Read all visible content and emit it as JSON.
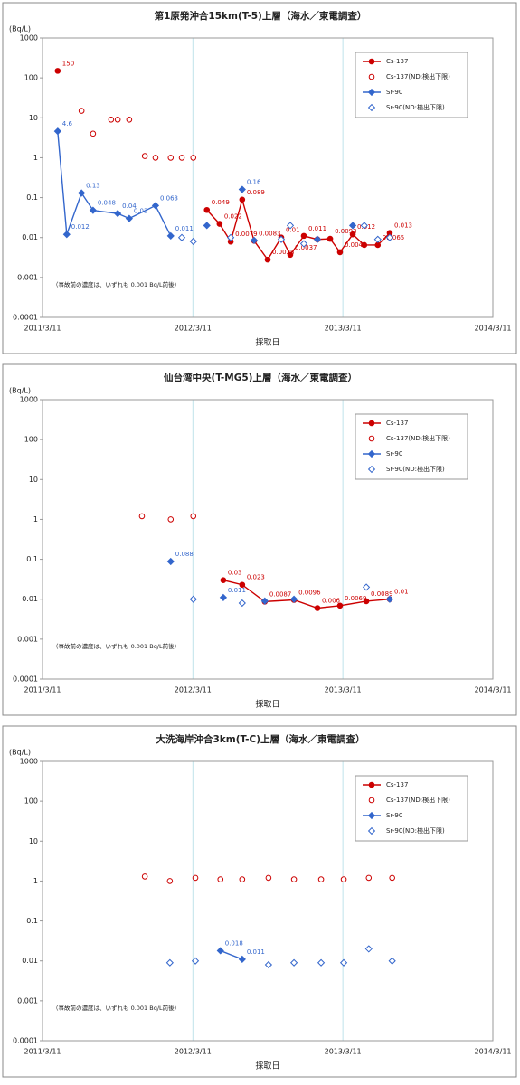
{
  "chart_data": [
    {
      "type": "scatter",
      "title": "第1原発沖合15km(T-5)上層（海水／東電調査）",
      "y_label": "(Bq/L)",
      "x_label": "採取日",
      "annotation": "（事故前の濃度は、いずれも 0.001 Bq/L前後）",
      "y_log": true,
      "ylim": [
        0.0001,
        1000
      ],
      "yticks": [
        1000,
        100,
        10,
        1,
        0.1,
        0.01,
        0.001,
        0.0001
      ],
      "xlim": [
        "2011-03-11",
        "2014-03-11"
      ],
      "xticks": [
        {
          "value": "2011-03-11",
          "label": "2011/3/11"
        },
        {
          "value": "2012-03-11",
          "label": "2012/3/11"
        },
        {
          "value": "2013-03-11",
          "label": "2013/3/11"
        },
        {
          "value": "2014-03-11",
          "label": "2014/3/11"
        }
      ],
      "grid": "x",
      "legend": "upper right",
      "series": [
        {
          "name": "Cs-137",
          "color": "#cc0000",
          "marker": "circle",
          "filled": true,
          "line": true,
          "x": [
            "2011-04-17",
            "2011-12-11",
            "2012-04-14",
            "2012-05-15",
            "2012-06-11",
            "2012-07-09",
            "2012-08-07",
            "2012-09-09",
            "2012-10-12",
            "2012-11-03",
            "2012-12-06",
            "2013-01-08",
            "2013-02-08",
            "2013-03-04",
            "2013-04-04",
            "2013-05-02",
            "2013-06-04",
            "2013-07-03"
          ],
          "values": [
            150,
            null,
            0.049,
            0.022,
            0.0079,
            0.089,
            0.0083,
            0.0028,
            0.01,
            0.0037,
            0.011,
            0.009,
            0.0093,
            0.0043,
            0.012,
            0.0065,
            0.0065,
            0.013
          ],
          "value_labels": [
            "150",
            null,
            "0.049",
            "0.022",
            "0.0079",
            "0.089",
            "0.0083",
            "0.0028",
            "0.01",
            "0.0037",
            "0.011",
            null,
            "0.0093",
            "0.0043",
            "0.012",
            null,
            "0.0065",
            "0.013"
          ]
        },
        {
          "name": "Cs-137(ND:検出下限)",
          "color": "#cc0000",
          "marker": "circle",
          "filled": false,
          "line": false,
          "x": [
            "2011-06-14",
            "2011-07-12",
            "2011-08-25",
            "2011-09-10",
            "2011-10-08",
            "2011-11-15",
            "2011-12-11",
            "2012-01-17",
            "2012-02-13",
            "2012-03-12"
          ],
          "values": [
            15,
            4,
            9,
            9,
            9,
            1.1,
            1,
            1,
            1,
            1
          ]
        },
        {
          "name": "Sr-90",
          "color": "#3366cc",
          "marker": "diamond",
          "filled": true,
          "line": true,
          "x": [
            "2011-04-17",
            "2011-05-09",
            "2011-06-14",
            "2011-07-12",
            "2011-09-10",
            "2011-10-08",
            "2011-12-11",
            "2012-01-17",
            "2012-02-13",
            "2012-04-14",
            "2012-05-01",
            "2012-07-09",
            "2012-07-20",
            "2012-08-07",
            "2012-10-01",
            "2013-01-08",
            "2013-03-01",
            "2013-04-04"
          ],
          "values": [
            4.6,
            0.012,
            0.13,
            0.048,
            0.04,
            0.03,
            0.063,
            0.011,
            null,
            0.02,
            null,
            0.16,
            null,
            0.0085,
            null,
            0.009,
            null,
            0.02
          ],
          "value_labels": [
            "4.6",
            "0.012",
            "0.13",
            "0.048",
            "0.04",
            "0.03",
            "0.063",
            "0.011",
            null,
            null,
            null,
            "0.16",
            null,
            null,
            null,
            null,
            null,
            null
          ]
        },
        {
          "name": "Sr-90(ND:検出下限)",
          "color": "#3366cc",
          "marker": "diamond",
          "filled": false,
          "line": false,
          "x": [
            "2012-02-13",
            "2012-03-12",
            "2012-06-11",
            "2012-10-12",
            "2012-11-03",
            "2012-12-06",
            "2013-05-02",
            "2013-06-04",
            "2013-07-03"
          ],
          "values": [
            0.01,
            0.008,
            0.01,
            0.009,
            0.02,
            0.007,
            0.02,
            0.009,
            0.01
          ]
        }
      ]
    },
    {
      "type": "scatter",
      "title": "仙台湾中央(T-MG5)上層（海水／東電調査）",
      "y_label": "(Bq/L)",
      "x_label": "採取日",
      "annotation": "（事故前の濃度は、いずれも 0.001 Bq/L前後）",
      "y_log": true,
      "ylim": [
        0.0001,
        1000
      ],
      "yticks": [
        1000,
        100,
        10,
        1,
        0.1,
        0.01,
        0.001,
        0.0001
      ],
      "xlim": [
        "2011-03-11",
        "2014-03-11"
      ],
      "xticks": [
        {
          "value": "2011-03-11",
          "label": "2011/3/11"
        },
        {
          "value": "2012-03-11",
          "label": "2012/3/11"
        },
        {
          "value": "2013-03-11",
          "label": "2013/3/11"
        },
        {
          "value": "2014-03-11",
          "label": "2014/3/11"
        }
      ],
      "grid": "x",
      "legend": "upper right",
      "series": [
        {
          "name": "Cs-137",
          "color": "#cc0000",
          "marker": "circle",
          "filled": true,
          "line": true,
          "x": [
            "2012-05-24",
            "2012-07-09",
            "2012-09-02",
            "2012-11-12",
            "2013-01-08",
            "2013-03-04",
            "2013-05-07",
            "2013-07-03"
          ],
          "values": [
            0.03,
            0.023,
            0.0087,
            0.0096,
            0.006,
            0.0069,
            0.0089,
            0.01
          ],
          "value_labels": [
            "0.03",
            "0.023",
            "0.0087",
            "0.0096",
            "0.006",
            "0.0069",
            "0.0089",
            "0.01"
          ]
        },
        {
          "name": "Cs-137(ND:検出下限)",
          "color": "#cc0000",
          "marker": "circle",
          "filled": false,
          "line": false,
          "x": [
            "2011-11-08",
            "2012-01-17",
            "2012-03-12"
          ],
          "values": [
            1.2,
            1,
            1.2
          ]
        },
        {
          "name": "Sr-90",
          "color": "#3366cc",
          "marker": "diamond",
          "filled": true,
          "line": true,
          "x": [
            "2012-01-17",
            "2012-03-12",
            "2012-05-24",
            "2012-07-09",
            "2012-09-02",
            "2012-10-01",
            "2012-11-12",
            "2013-06-01",
            "2013-07-03"
          ],
          "values": [
            0.088,
            null,
            0.011,
            null,
            0.009,
            null,
            0.01,
            null,
            0.01
          ],
          "value_labels": [
            "0.088",
            null,
            "0.011",
            null,
            null,
            null,
            null,
            null,
            null
          ]
        },
        {
          "name": "Sr-90(ND:検出下限)",
          "color": "#3366cc",
          "marker": "diamond",
          "filled": false,
          "line": false,
          "x": [
            "2012-03-12",
            "2012-07-09",
            "2013-05-07"
          ],
          "values": [
            0.01,
            0.008,
            0.02
          ]
        }
      ]
    },
    {
      "type": "scatter",
      "title": "大洗海岸沖合3km(T-C)上層（海水／東電調査）",
      "y_label": "(Bq/L)",
      "x_label": "採取日",
      "annotation": "（事故前の濃度は、いずれも 0.001 Bq/L前後）",
      "y_log": true,
      "ylim": [
        0.0001,
        1000
      ],
      "yticks": [
        1000,
        100,
        10,
        1,
        0.1,
        0.01,
        0.001,
        0.0001
      ],
      "xlim": [
        "2011-03-11",
        "2014-03-11"
      ],
      "xticks": [
        {
          "value": "2011-03-11",
          "label": "2011/3/11"
        },
        {
          "value": "2012-03-11",
          "label": "2012/3/11"
        },
        {
          "value": "2013-03-11",
          "label": "2013/3/11"
        },
        {
          "value": "2014-03-11",
          "label": "2014/3/11"
        }
      ],
      "grid": "x",
      "legend": "upper right",
      "series": [
        {
          "name": "Cs-137",
          "color": "#cc0000",
          "marker": "circle",
          "filled": true,
          "line": true,
          "x": [],
          "values": []
        },
        {
          "name": "Cs-137(ND:検出下限)",
          "color": "#cc0000",
          "marker": "circle",
          "filled": false,
          "line": false,
          "x": [
            "2011-11-15",
            "2012-01-15",
            "2012-03-17",
            "2012-05-17",
            "2012-07-09",
            "2012-09-11",
            "2012-11-12",
            "2013-01-17",
            "2013-03-13",
            "2013-05-13",
            "2013-07-09"
          ],
          "values": [
            1.3,
            1,
            1.2,
            1.1,
            1.1,
            1.2,
            1.1,
            1.1,
            1.1,
            1.2,
            1.2
          ]
        },
        {
          "name": "Sr-90",
          "color": "#3366cc",
          "marker": "diamond",
          "filled": true,
          "line": true,
          "x": [
            "2012-05-17",
            "2012-07-09"
          ],
          "values": [
            0.018,
            0.011
          ],
          "value_labels": [
            "0.018",
            "0.011"
          ]
        },
        {
          "name": "Sr-90(ND:検出下限)",
          "color": "#3366cc",
          "marker": "diamond",
          "filled": false,
          "line": false,
          "x": [
            "2012-01-15",
            "2012-03-17",
            "2012-09-11",
            "2012-11-12",
            "2013-01-17",
            "2013-03-13",
            "2013-05-13",
            "2013-07-09"
          ],
          "values": [
            0.009,
            0.01,
            0.008,
            0.009,
            0.009,
            0.009,
            0.02,
            0.01
          ]
        }
      ]
    }
  ]
}
